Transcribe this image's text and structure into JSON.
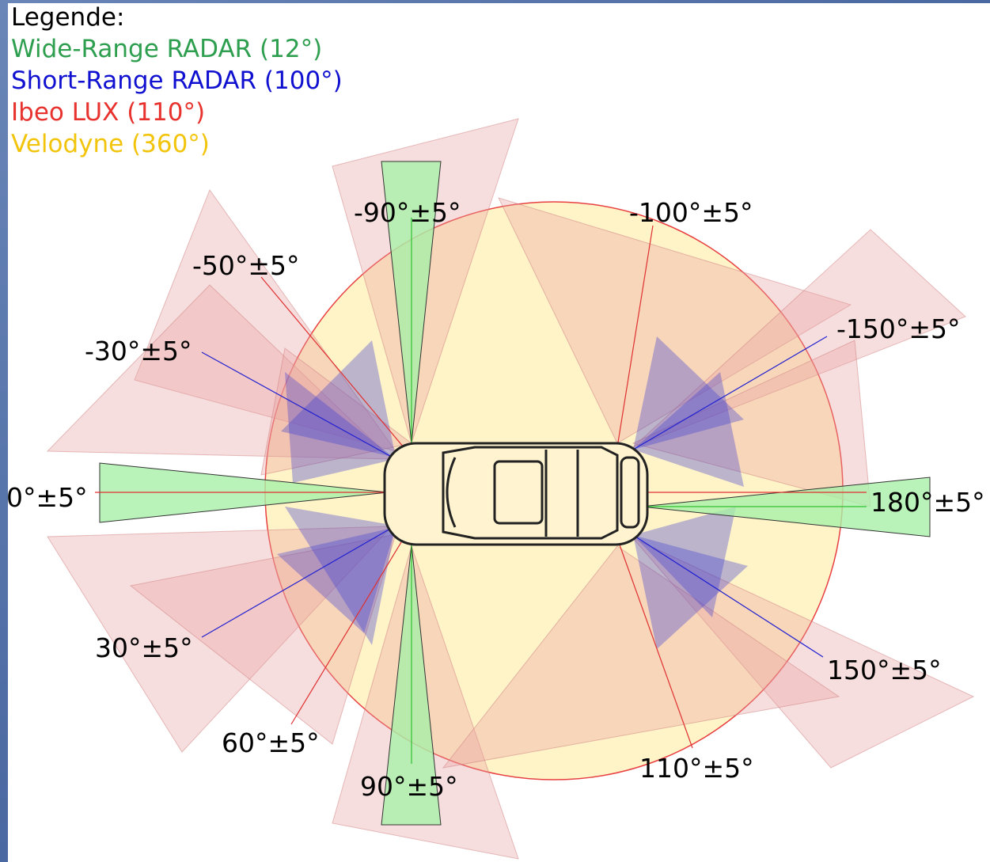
{
  "legend": {
    "title": "Legende:",
    "items": [
      {
        "label": "Wide-Range RADAR (12°)",
        "color": "#2e9e4f"
      },
      {
        "label": "Short-Range RADAR (100°)",
        "color": "#1010d0"
      },
      {
        "label": "Ibeo LUX (110°)",
        "color": "#e8322e"
      },
      {
        "label": "Velodyne (360°)",
        "color": "#f2c40c"
      }
    ]
  },
  "labels": [
    "-90°±5°",
    "-100°±5°",
    "-50°±5°",
    "-30°±5°",
    "0°±5°",
    "30°±5°",
    "60°±5°",
    "90°±5°",
    "110°±5°",
    "150°±5°",
    "180°±5°",
    "-150°±5°"
  ]
}
